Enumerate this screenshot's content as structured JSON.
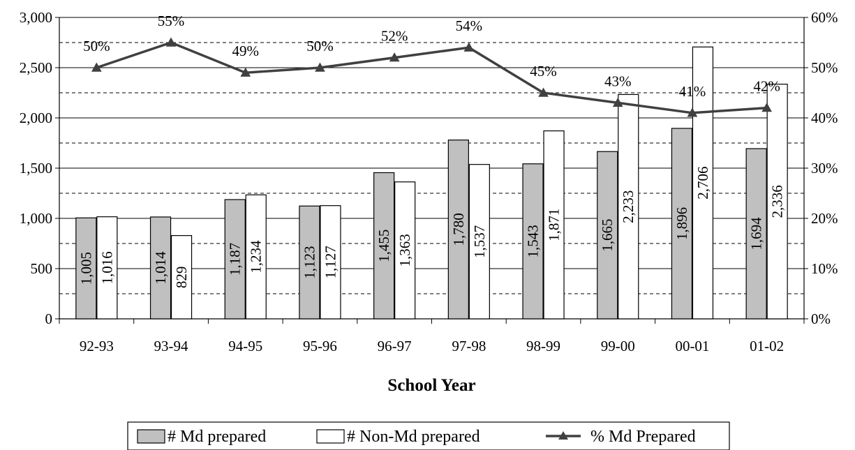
{
  "chart_data": {
    "type": "bar",
    "categories": [
      "92-93",
      "93-94",
      "94-95",
      "95-96",
      "96-97",
      "97-98",
      "98-99",
      "99-00",
      "00-01",
      "01-02"
    ],
    "series": [
      {
        "name": "# Md prepared",
        "kind": "bar",
        "color": "#c0c0c0",
        "values": [
          1005,
          1014,
          1187,
          1123,
          1455,
          1780,
          1543,
          1665,
          1896,
          1694
        ],
        "labels": [
          "1,005",
          "1,014",
          "1,187",
          "1,123",
          "1,455",
          "1,780",
          "1,543",
          "1,665",
          "1,896",
          "1,694"
        ]
      },
      {
        "name": "# Non-Md prepared",
        "kind": "bar",
        "color": "#ffffff",
        "values": [
          1016,
          829,
          1234,
          1127,
          1363,
          1537,
          1871,
          2233,
          2706,
          2336
        ],
        "labels": [
          "1,016",
          "829",
          "1,234",
          "1,127",
          "1,363",
          "1,537",
          "1,871",
          "2,233",
          "2,706",
          "2,336"
        ]
      },
      {
        "name": "% Md Prepared",
        "kind": "line",
        "axis": "right",
        "color": "#404040",
        "values": [
          50,
          55,
          49,
          50,
          52,
          54,
          45,
          43,
          41,
          42
        ],
        "labels": [
          "50%",
          "55%",
          "49%",
          "50%",
          "52%",
          "54%",
          "45%",
          "43%",
          "41%",
          "42%"
        ]
      }
    ],
    "xlabel": "School Year",
    "ylabel": "",
    "ylim": [
      0,
      3000
    ],
    "y_ticks": [
      "0",
      "500",
      "1,000",
      "1,500",
      "2,000",
      "2,500",
      "3,000"
    ],
    "y2lim": [
      0,
      60
    ],
    "y2_ticks": [
      "0%",
      "10%",
      "20%",
      "30%",
      "40%",
      "50%",
      "60%"
    ],
    "grid": true,
    "legend": "bottom"
  }
}
